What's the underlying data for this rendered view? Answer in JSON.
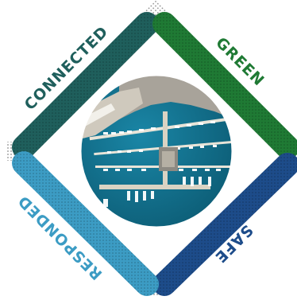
{
  "labels": {
    "top_left": "CONNECTED",
    "top_right": "GREEN",
    "bottom_right": "SAFE",
    "bottom_left": "RESPONDED"
  },
  "colors": {
    "connected_band": "#1f5f5c",
    "green_band": "#1f7a34",
    "safe_band": "#1d4c8a",
    "responded_band": "#3c9cc4",
    "connected_text": "#1f5f5c",
    "green_text": "#1f7a34",
    "safe_text": "#1d4c8a",
    "responded_text": "#3c9cc4",
    "sea": "#0f6e8e",
    "city": "#a8a39a",
    "dots": "#8a8a8a"
  },
  "center_image": "aerial-marina-photo"
}
